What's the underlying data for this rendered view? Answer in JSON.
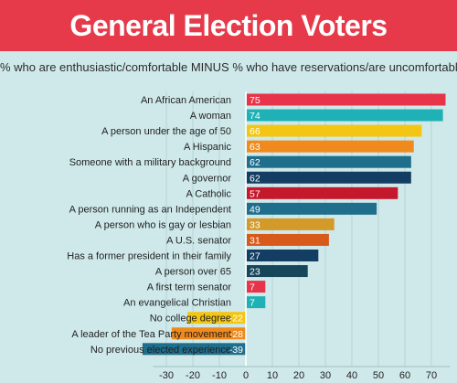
{
  "header": {
    "title": "General Election Voters",
    "subtitle": "% who are enthusiastic/comfortable MINUS % who have reservations/are uncomfortable"
  },
  "colors": {
    "header_bg": "#e63a4a",
    "background": "#cfe9ea"
  },
  "chart_data": {
    "type": "bar",
    "orientation": "horizontal",
    "title": "General Election Voters",
    "subtitle": "% who are enthusiastic/comfortable MINUS % who have reservations/are uncomfortable",
    "categories": [
      "An African American",
      "A woman",
      "A person under the age of 50",
      "A Hispanic",
      "Someone with a military background",
      "A governor",
      "A Catholic",
      "A person running as an Independent",
      "A person who is gay or lesbian",
      "A U.S. senator",
      "Has a former president in their family",
      "A person over 65",
      "A first term senator",
      "An evangelical Christian",
      "No college degree",
      "A leader of the Tea Party movement",
      "No previous elected experience"
    ],
    "values": [
      75,
      74,
      66,
      63,
      62,
      62,
      57,
      49,
      33,
      31,
      27,
      23,
      7,
      7,
      -22,
      -28,
      -39
    ],
    "value_labels": [
      "75",
      "74",
      "66",
      "63",
      "62",
      "62",
      "57",
      "49",
      "33",
      "31",
      "27",
      "23",
      "7",
      "7",
      "-22",
      "-28",
      "-39"
    ],
    "bar_colors": [
      "#e8344a",
      "#1fb1b5",
      "#f3c614",
      "#f08a1c",
      "#1f6e8c",
      "#133d63",
      "#c4182c",
      "#1f6e8c",
      "#d39a2a",
      "#d85a1a",
      "#133d63",
      "#174559",
      "#e8344a",
      "#1fb1b5",
      "#f3c614",
      "#f08a1c",
      "#1f6e8c"
    ],
    "xlim": [
      -35,
      75
    ],
    "xticks": [
      -30,
      -20,
      -10,
      0,
      10,
      20,
      30,
      40,
      50,
      60,
      70
    ],
    "xtick_labels": [
      "-30",
      "-20",
      "-10",
      "0",
      "10",
      "20",
      "30",
      "40",
      "50",
      "60",
      "70"
    ],
    "grid": true
  }
}
